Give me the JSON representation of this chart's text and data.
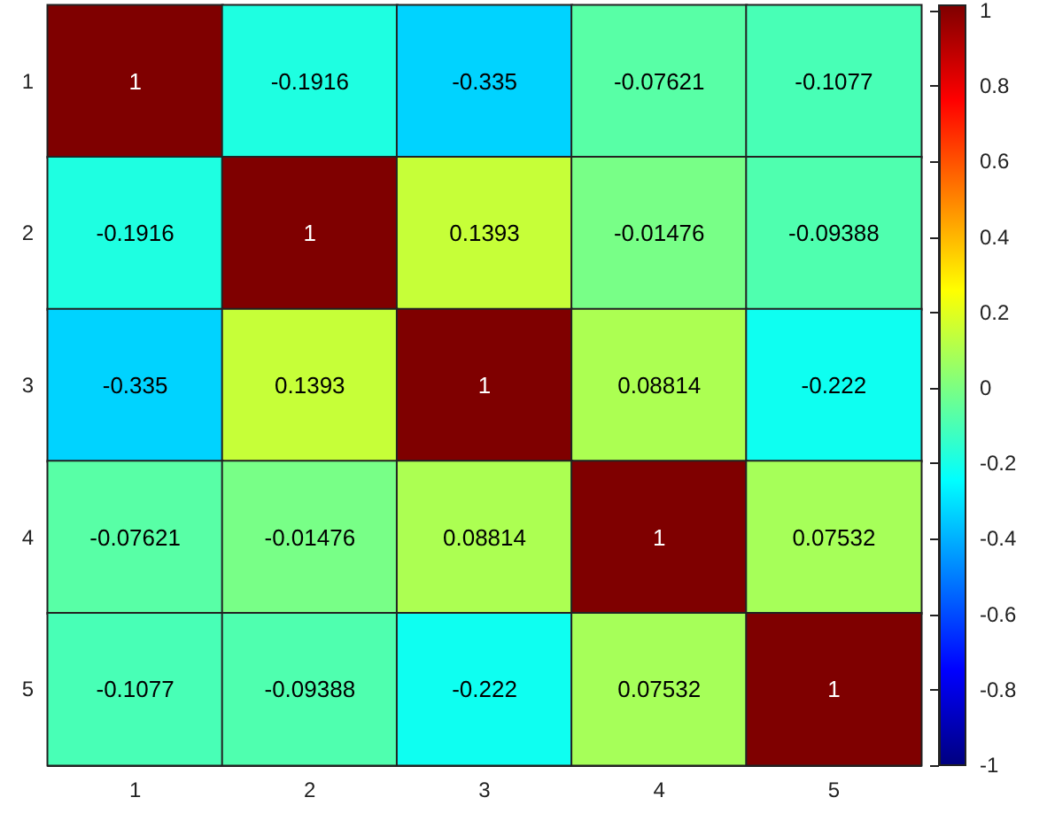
{
  "chart_data": {
    "type": "heatmap",
    "categories": [
      "1",
      "2",
      "3",
      "4",
      "5"
    ],
    "y_categories": [
      "1",
      "2",
      "3",
      "4",
      "5"
    ],
    "cells": [
      [
        1,
        -0.1916,
        -0.335,
        -0.07621,
        -0.1077
      ],
      [
        -0.1916,
        1,
        0.1393,
        -0.01476,
        -0.09388
      ],
      [
        -0.335,
        0.1393,
        1,
        0.08814,
        -0.222
      ],
      [
        -0.07621,
        -0.01476,
        0.08814,
        1,
        0.07532
      ],
      [
        -0.1077,
        -0.09388,
        -0.222,
        0.07532,
        1
      ]
    ],
    "clim": [
      -1,
      1
    ],
    "data_labels": true,
    "cticks": [
      -1,
      -0.8,
      -0.6,
      -0.4,
      -0.2,
      0,
      0.2,
      0.4,
      0.6,
      0.8,
      1
    ]
  }
}
